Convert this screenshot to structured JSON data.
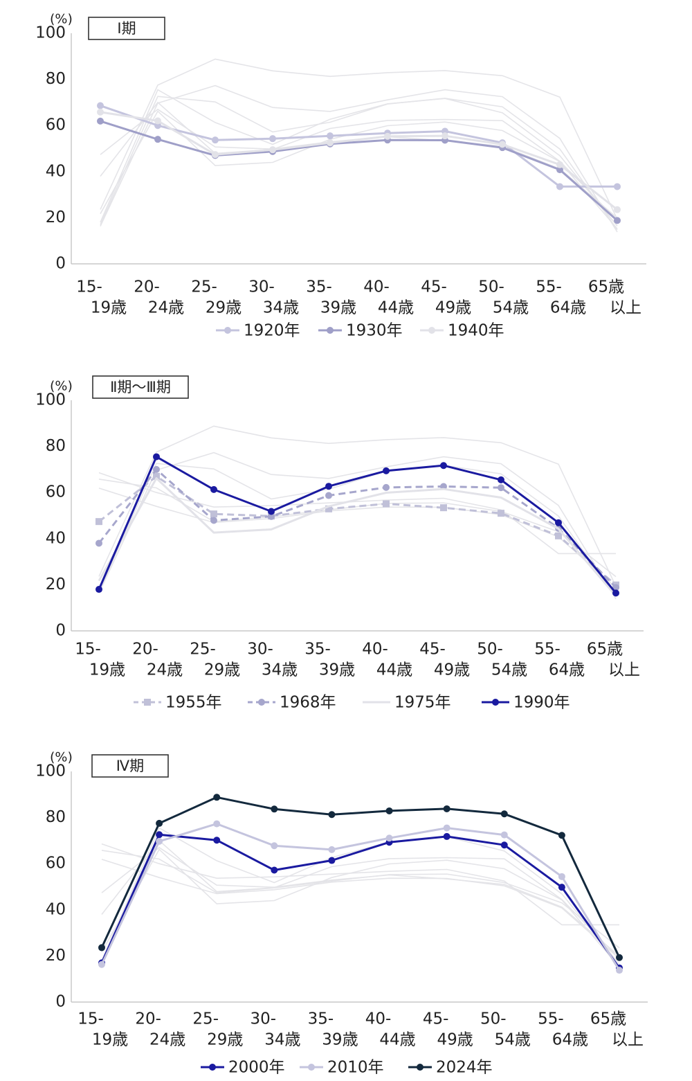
{
  "chart_data": [
    {
      "type": "line",
      "title": "Ⅰ期",
      "ylabel": "(%)",
      "ylim": [
        0,
        100
      ],
      "yticks": [
        0,
        20,
        40,
        60,
        80,
        100
      ],
      "categories": [
        [
          "15-",
          "19歳"
        ],
        [
          "20-",
          "24歳"
        ],
        [
          "25-",
          "29歳"
        ],
        [
          "30-",
          "34歳"
        ],
        [
          "35-",
          "39歳"
        ],
        [
          "40-",
          "44歳"
        ],
        [
          "45-",
          "49歳"
        ],
        [
          "50-",
          "54歳"
        ],
        [
          "55-",
          "64歳"
        ],
        [
          "65歳",
          "以上"
        ]
      ],
      "series": [
        {
          "name": "1920年",
          "values": [
            68.6,
            60.0,
            53.7,
            54.3,
            55.5,
            56.7,
            57.5,
            52.5,
            33.5,
            33.5
          ],
          "color": "#c4c4de",
          "style": "solid",
          "marker": "circle"
        },
        {
          "name": "1930年",
          "values": [
            61.9,
            54.0,
            47.0,
            48.7,
            52.0,
            53.7,
            53.6,
            50.4,
            40.8,
            18.8
          ],
          "color": "#9f9fc8",
          "style": "solid",
          "marker": "circle"
        },
        {
          "name": "1940年",
          "values": [
            65.8,
            62.0,
            47.4,
            49.5,
            52.5,
            55.3,
            55.5,
            51.8,
            43.0,
            23.5
          ],
          "color": "#e2e2e8",
          "style": "solid",
          "marker": "circle"
        }
      ],
      "legend": [
        "1920年",
        "1930年",
        "1940年"
      ]
    },
    {
      "type": "line",
      "title": "Ⅱ期～Ⅲ期",
      "ylabel": "(%)",
      "ylim": [
        0,
        100
      ],
      "yticks": [
        0,
        20,
        40,
        60,
        80,
        100
      ],
      "categories": [
        [
          "15-",
          "19歳"
        ],
        [
          "20-",
          "24歳"
        ],
        [
          "25-",
          "29歳"
        ],
        [
          "30-",
          "34歳"
        ],
        [
          "35-",
          "39歳"
        ],
        [
          "40-",
          "44歳"
        ],
        [
          "45-",
          "49歳"
        ],
        [
          "50-",
          "54歳"
        ],
        [
          "55-",
          "64歳"
        ],
        [
          "65歳",
          "以上"
        ]
      ],
      "series": [
        {
          "name": "1955年",
          "values": [
            47.4,
            67.0,
            50.7,
            49.8,
            52.9,
            55.1,
            53.4,
            51.0,
            41.2,
            19.9
          ],
          "color": "#c0c0d8",
          "style": "dashed",
          "marker": "square"
        },
        {
          "name": "1968年",
          "values": [
            38.0,
            70.0,
            47.9,
            49.6,
            58.7,
            62.2,
            62.6,
            62.1,
            44.5,
            18.8
          ],
          "color": "#a6a6cc",
          "style": "dashed",
          "marker": "circle"
        },
        {
          "name": "1975年",
          "values": [
            21.7,
            66.2,
            42.6,
            44.0,
            54.0,
            59.9,
            61.5,
            57.8,
            44.3,
            15.2
          ],
          "color": "#e2e2e8",
          "style": "solid",
          "marker": "none"
        },
        {
          "name": "1990年",
          "values": [
            18.0,
            75.5,
            61.3,
            51.8,
            62.7,
            69.4,
            71.7,
            65.5,
            46.9,
            16.4
          ],
          "color": "#1a1aa0",
          "style": "solid",
          "marker": "circle"
        }
      ],
      "legend": [
        "1955年",
        "1968年",
        "1975年",
        "1990年"
      ]
    },
    {
      "type": "line",
      "title": "Ⅳ期",
      "ylabel": "(%)",
      "ylim": [
        0,
        100
      ],
      "yticks": [
        0,
        20,
        40,
        60,
        80,
        100
      ],
      "categories": [
        [
          "15-",
          "19歳"
        ],
        [
          "20-",
          "24歳"
        ],
        [
          "25-",
          "29歳"
        ],
        [
          "30-",
          "34歳"
        ],
        [
          "35-",
          "39歳"
        ],
        [
          "40-",
          "44歳"
        ],
        [
          "45-",
          "49歳"
        ],
        [
          "50-",
          "54歳"
        ],
        [
          "55-",
          "64歳"
        ],
        [
          "65歳",
          "以上"
        ]
      ],
      "series": [
        {
          "name": "2000年",
          "values": [
            17.0,
            72.6,
            70.2,
            57.2,
            61.4,
            69.3,
            71.8,
            68.1,
            49.8,
            14.8
          ],
          "color": "#1a1aa0",
          "style": "solid",
          "marker": "circle"
        },
        {
          "name": "2010年",
          "values": [
            16.3,
            69.7,
            77.3,
            67.8,
            66.1,
            71.1,
            75.5,
            72.5,
            54.4,
            13.8
          ],
          "color": "#c4c4de",
          "style": "solid",
          "marker": "circle"
        },
        {
          "name": "2024年",
          "values": [
            23.6,
            77.5,
            88.8,
            83.7,
            81.3,
            82.9,
            83.8,
            81.6,
            72.3,
            19.3
          ],
          "color": "#13293d",
          "style": "solid",
          "marker": "circle"
        }
      ],
      "legend": [
        "2000年",
        "2010年",
        "2024年"
      ]
    }
  ]
}
